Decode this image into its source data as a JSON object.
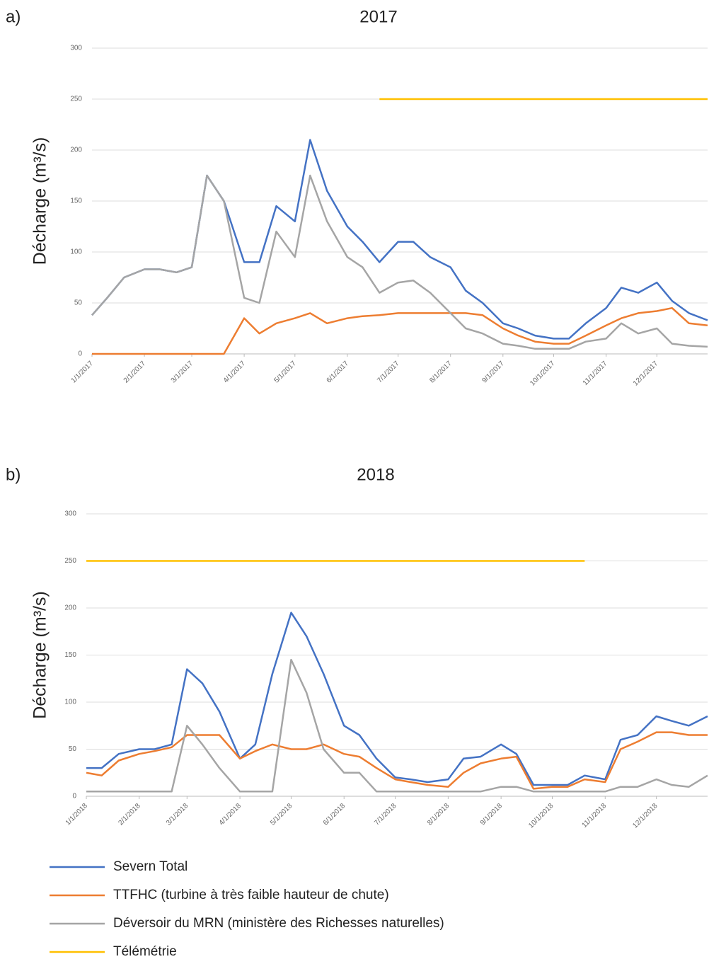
{
  "chart_data": [
    {
      "type": "line",
      "label": "a)",
      "title": "2017",
      "y_label": "Décharge (m³/s)",
      "x": [
        "1/1/2017",
        "1/10/2017",
        "1/20/2017",
        "2/1/2017",
        "2/10/2017",
        "2/20/2017",
        "3/1/2017",
        "3/10/2017",
        "3/20/2017",
        "4/1/2017",
        "4/10/2017",
        "4/20/2017",
        "5/1/2017",
        "5/10/2017",
        "5/20/2017",
        "6/1/2017",
        "6/10/2017",
        "6/20/2017",
        "7/1/2017",
        "7/10/2017",
        "7/20/2017",
        "8/1/2017",
        "8/10/2017",
        "8/20/2017",
        "9/1/2017",
        "9/10/2017",
        "9/20/2017",
        "10/1/2017",
        "10/10/2017",
        "10/20/2017",
        "11/1/2017",
        "11/10/2017",
        "11/20/2017",
        "12/1/2017",
        "12/10/2017",
        "12/20/2017",
        "12/31/2017"
      ],
      "series": [
        {
          "color": "#4472c4",
          "values": [
            38,
            55,
            75,
            83,
            83,
            80,
            85,
            175,
            150,
            90,
            90,
            145,
            130,
            210,
            160,
            125,
            110,
            90,
            110,
            110,
            95,
            85,
            62,
            50,
            30,
            25,
            18,
            15,
            15,
            30,
            45,
            65,
            60,
            70,
            52,
            40,
            33
          ]
        },
        {
          "color": "#ed7d31",
          "values": [
            0,
            0,
            0,
            0,
            0,
            0,
            0,
            0,
            0,
            35,
            20,
            30,
            35,
            40,
            30,
            35,
            37,
            38,
            40,
            40,
            40,
            40,
            40,
            38,
            25,
            18,
            12,
            10,
            10,
            18,
            28,
            35,
            40,
            42,
            45,
            30,
            28
          ]
        },
        {
          "color": "#a5a5a5",
          "values": [
            38,
            55,
            75,
            83,
            83,
            80,
            85,
            175,
            150,
            55,
            50,
            120,
            95,
            175,
            130,
            95,
            85,
            60,
            70,
            72,
            60,
            40,
            25,
            20,
            10,
            8,
            5,
            5,
            5,
            12,
            15,
            30,
            20,
            25,
            10,
            8,
            7
          ]
        },
        {
          "color": "#ffc000",
          "values": [
            null,
            null,
            null,
            null,
            null,
            null,
            null,
            null,
            null,
            null,
            null,
            null,
            null,
            null,
            null,
            null,
            null,
            250,
            250,
            250,
            250,
            250,
            250,
            250,
            250,
            250,
            250,
            250,
            250,
            250,
            250,
            250,
            250,
            250,
            250,
            250,
            250
          ]
        }
      ],
      "xlim": [
        "1/1/2017",
        "12/31/2017"
      ],
      "xticks": [
        "1/1/2017",
        "2/1/2017",
        "3/1/2017",
        "4/1/2017",
        "5/1/2017",
        "6/1/2017",
        "7/1/2017",
        "8/1/2017",
        "9/1/2017",
        "10/1/2017",
        "11/1/2017",
        "12/1/2017"
      ],
      "ylim": [
        0,
        300
      ],
      "yticks": [
        0,
        50,
        100,
        150,
        200,
        250,
        300
      ],
      "grid": true
    },
    {
      "type": "line",
      "label": "b)",
      "title": "2018",
      "y_label": "Décharge (m³/s)",
      "x": [
        "1/1/2018",
        "1/10/2018",
        "1/20/2018",
        "2/1/2018",
        "2/10/2018",
        "2/20/2018",
        "3/1/2018",
        "3/10/2018",
        "3/20/2018",
        "4/1/2018",
        "4/10/2018",
        "4/20/2018",
        "5/1/2018",
        "5/10/2018",
        "5/20/2018",
        "6/1/2018",
        "6/10/2018",
        "6/20/2018",
        "7/1/2018",
        "7/10/2018",
        "7/20/2018",
        "8/1/2018",
        "8/10/2018",
        "8/20/2018",
        "9/1/2018",
        "9/10/2018",
        "9/20/2018",
        "10/1/2018",
        "10/10/2018",
        "10/20/2018",
        "11/1/2018",
        "11/10/2018",
        "11/20/2018",
        "12/1/2018",
        "12/10/2018",
        "12/20/2018",
        "12/31/2018"
      ],
      "series": [
        {
          "name": "Severn Total",
          "color": "#4472c4",
          "values": [
            30,
            30,
            45,
            50,
            50,
            55,
            135,
            120,
            90,
            40,
            55,
            130,
            195,
            170,
            130,
            75,
            65,
            40,
            20,
            18,
            15,
            18,
            40,
            42,
            55,
            45,
            12,
            12,
            12,
            22,
            18,
            60,
            65,
            85,
            80,
            75,
            85
          ]
        },
        {
          "name": "TTFHC (turbine à très faible hauteur de chute)",
          "color": "#ed7d31",
          "values": [
            25,
            22,
            38,
            45,
            48,
            52,
            65,
            65,
            65,
            40,
            48,
            55,
            50,
            50,
            55,
            45,
            42,
            30,
            18,
            15,
            12,
            10,
            25,
            35,
            40,
            42,
            8,
            10,
            10,
            18,
            15,
            50,
            58,
            68,
            68,
            65,
            65
          ]
        },
        {
          "name": "Déversoir du MRN (ministère des Richesses naturelles)",
          "color": "#a5a5a5",
          "values": [
            5,
            5,
            5,
            5,
            5,
            5,
            75,
            55,
            30,
            5,
            5,
            5,
            145,
            110,
            50,
            25,
            25,
            5,
            5,
            5,
            5,
            5,
            5,
            5,
            10,
            10,
            5,
            5,
            5,
            5,
            5,
            10,
            10,
            18,
            12,
            10,
            22
          ]
        },
        {
          "name": "Télémétrie",
          "color": "#ffc000",
          "values": [
            250,
            250,
            250,
            250,
            250,
            250,
            250,
            250,
            250,
            250,
            250,
            250,
            250,
            250,
            250,
            250,
            250,
            250,
            250,
            250,
            250,
            250,
            250,
            250,
            250,
            250,
            250,
            250,
            250,
            250,
            null,
            null,
            null,
            null,
            null,
            null,
            null
          ]
        }
      ],
      "xlim": [
        "1/1/2018",
        "12/31/2018"
      ],
      "xticks": [
        "1/1/2018",
        "2/1/2018",
        "3/1/2018",
        "4/1/2018",
        "5/1/2018",
        "6/1/2018",
        "7/1/2018",
        "8/1/2018",
        "9/1/2018",
        "10/1/2018",
        "11/1/2018",
        "12/1/2018"
      ],
      "ylim": [
        0,
        300
      ],
      "yticks": [
        0,
        50,
        100,
        150,
        200,
        250,
        300
      ],
      "grid": true
    }
  ]
}
